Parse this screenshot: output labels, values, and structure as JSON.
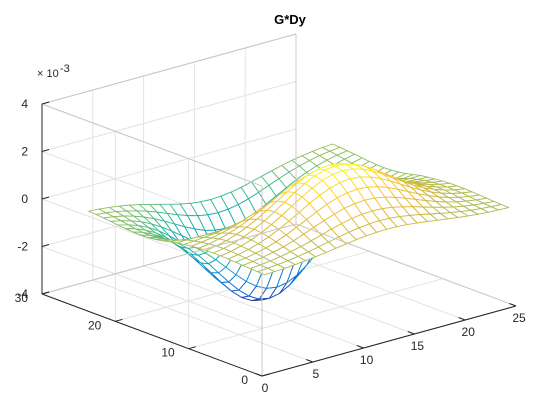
{
  "chart_data": {
    "type": "mesh",
    "title": "G*Dy",
    "z_exponent_label": {
      "base": "× 10",
      "exponent": "-3"
    },
    "x_ticks": [
      "0",
      "5",
      "10",
      "15",
      "20",
      "25"
    ],
    "y_ticks": [
      "0",
      "10",
      "20",
      "30"
    ],
    "z_ticks": [
      "-4",
      "-2",
      "0",
      "2",
      "4"
    ],
    "xlim": [
      0,
      25
    ],
    "ylim": [
      0,
      30
    ],
    "zlim": [
      -4,
      4
    ],
    "grid": true,
    "colormap": "parula",
    "surface": {
      "function": "gaussian-derivative-y",
      "x_range": [
        1,
        25
      ],
      "y_range": [
        1,
        25
      ],
      "peak": 2.4,
      "trough": -4.4
    }
  }
}
